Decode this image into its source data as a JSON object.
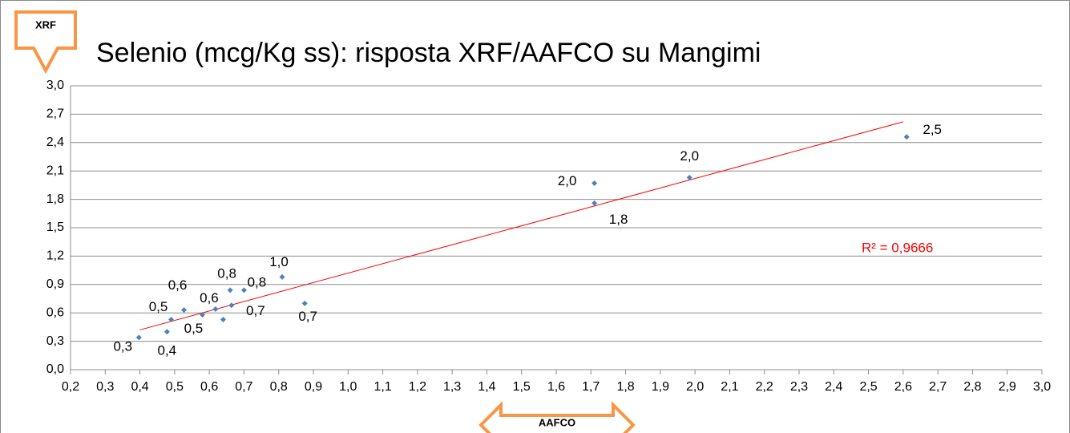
{
  "chart_data": {
    "type": "scatter",
    "title": "Selenio (mcg/Kg ss): risposta XRF/AAFCO su Mangimi",
    "y_label": "XRF",
    "x_label": "AAFCO",
    "color": "#4f81bd",
    "x": [
      0.397,
      0.478,
      0.49,
      0.527,
      0.58,
      0.618,
      0.64,
      0.66,
      0.664,
      0.7,
      0.81,
      0.875,
      1.71,
      1.71,
      1.984,
      2.61
    ],
    "values": [
      0.34,
      0.4,
      0.53,
      0.63,
      0.58,
      0.64,
      0.53,
      0.84,
      0.68,
      0.84,
      0.98,
      0.7,
      1.97,
      1.76,
      2.03,
      2.46
    ],
    "value_labels": [
      "0,3",
      "0,4",
      "0,5",
      "0,6",
      null,
      "0,6",
      "0,5",
      "0,8",
      "0,7",
      "0,8",
      "1,0",
      "0,7",
      "2,0",
      "1,8",
      "2,0",
      "2,5"
    ],
    "trendline": {
      "x": [
        0.4,
        2.6
      ],
      "y": [
        0.42,
        2.62
      ],
      "color": "#ff0000",
      "label": "R² = 0,9666"
    },
    "xlim": [
      0.2,
      3.0
    ],
    "xticks": [
      {
        "value": 0.2,
        "label": "0,2"
      },
      {
        "value": 0.3,
        "label": "0,3"
      },
      {
        "value": 0.4,
        "label": "0,4"
      },
      {
        "value": 0.5,
        "label": "0,5"
      },
      {
        "value": 0.6,
        "label": "0,6"
      },
      {
        "value": 0.7,
        "label": "0,7"
      },
      {
        "value": 0.8,
        "label": "0,8"
      },
      {
        "value": 0.9,
        "label": "0,9"
      },
      {
        "value": 1.0,
        "label": "1,0"
      },
      {
        "value": 1.1,
        "label": "1,1"
      },
      {
        "value": 1.2,
        "label": "1,2"
      },
      {
        "value": 1.3,
        "label": "1,3"
      },
      {
        "value": 1.4,
        "label": "1,4"
      },
      {
        "value": 1.5,
        "label": "1,5"
      },
      {
        "value": 1.6,
        "label": "1,6"
      },
      {
        "value": 1.7,
        "label": "1,7"
      },
      {
        "value": 1.8,
        "label": "1,8"
      },
      {
        "value": 1.9,
        "label": "1,9"
      },
      {
        "value": 2.0,
        "label": "2,0"
      },
      {
        "value": 2.1,
        "label": "2,1"
      },
      {
        "value": 2.2,
        "label": "2,2"
      },
      {
        "value": 2.3,
        "label": "2,3"
      },
      {
        "value": 2.4,
        "label": "2,4"
      },
      {
        "value": 2.5,
        "label": "2,5"
      },
      {
        "value": 2.6,
        "label": "2,6"
      },
      {
        "value": 2.7,
        "label": "2,7"
      },
      {
        "value": 2.8,
        "label": "2,8"
      },
      {
        "value": 2.9,
        "label": "2,9"
      },
      {
        "value": 3.0,
        "label": "3,0"
      }
    ],
    "ylim": [
      0.0,
      3.0
    ],
    "yticks": [
      {
        "value": 0.0,
        "label": "0,0"
      },
      {
        "value": 0.3,
        "label": "0,3"
      },
      {
        "value": 0.6,
        "label": "0,6"
      },
      {
        "value": 0.9,
        "label": "0,9"
      },
      {
        "value": 1.2,
        "label": "1,2"
      },
      {
        "value": 1.5,
        "label": "1,5"
      },
      {
        "value": 1.8,
        "label": "1,8"
      },
      {
        "value": 2.1,
        "label": "2,1"
      },
      {
        "value": 2.4,
        "label": "2,4"
      },
      {
        "value": 2.7,
        "label": "2,7"
      },
      {
        "value": 3.0,
        "label": "3,0"
      }
    ],
    "grid": true
  }
}
